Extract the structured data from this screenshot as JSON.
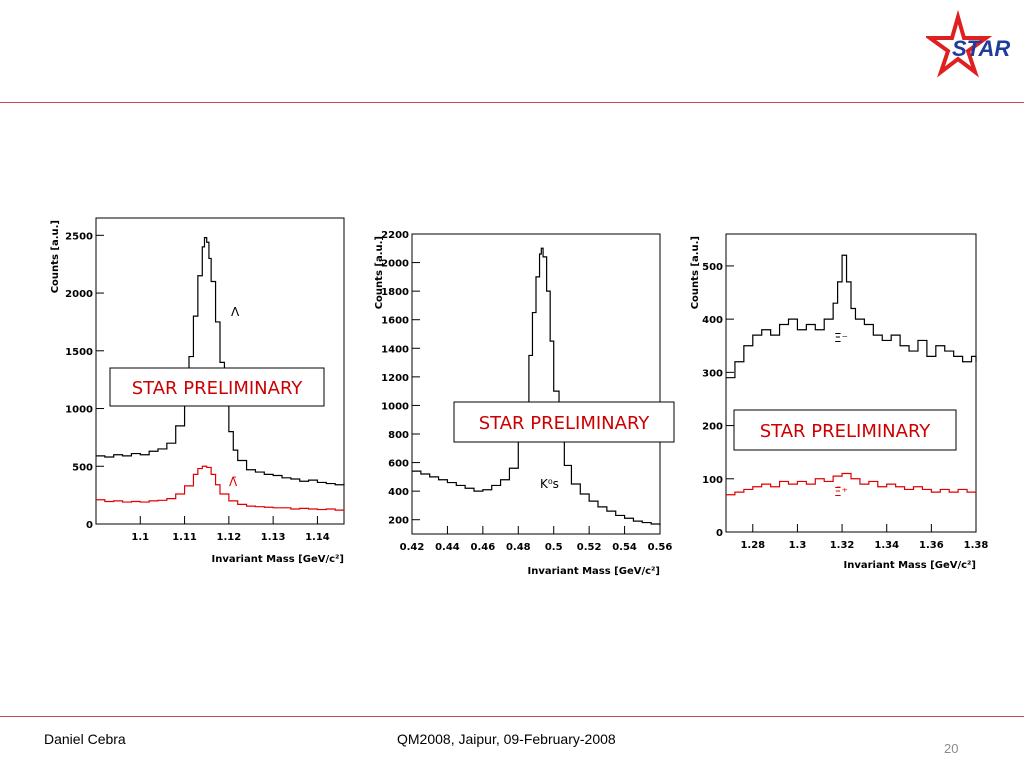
{
  "slide": {
    "footer_author": "Daniel Cebra",
    "footer_event": "QM2008, Jaipur, 09-February-2008",
    "page_number": "20",
    "logo_text": "STAR",
    "colors": {
      "rule": "#c0504d",
      "star": "#e02020",
      "logo_text": "#1f3c9c",
      "particle": "#000000",
      "antiparticle": "#e00000",
      "preliminary": "#cc0000"
    }
  },
  "chart_data": [
    {
      "type": "line",
      "title": "",
      "xlabel": "Invariant Mass [GeV/c²]",
      "ylabel": "Counts [a.u.]",
      "xlim": [
        1.09,
        1.146
      ],
      "ylim": [
        0,
        2650
      ],
      "xticks": [
        1.1,
        1.11,
        1.12,
        1.13,
        1.14
      ],
      "xtick_labels": [
        "1.1",
        "1.11",
        "1.12",
        "1.13",
        "1.14"
      ],
      "yticks": [
        0,
        500,
        1000,
        1500,
        2000,
        2500
      ],
      "ytick_labels": [
        "0",
        "500",
        "1000",
        "1500",
        "2000",
        "2500"
      ],
      "annotation": "STAR PRELIMINARY",
      "series": [
        {
          "name": "Λ",
          "color": "#000000",
          "x": [
            1.09,
            1.092,
            1.094,
            1.096,
            1.098,
            1.1,
            1.102,
            1.104,
            1.106,
            1.108,
            1.11,
            1.111,
            1.112,
            1.113,
            1.114,
            1.1145,
            1.115,
            1.1155,
            1.116,
            1.117,
            1.118,
            1.119,
            1.12,
            1.121,
            1.122,
            1.124,
            1.126,
            1.128,
            1.13,
            1.132,
            1.134,
            1.136,
            1.138,
            1.14,
            1.142,
            1.144,
            1.146
          ],
          "values": [
            590,
            580,
            600,
            590,
            610,
            600,
            630,
            650,
            700,
            850,
            1150,
            1450,
            1800,
            2150,
            2400,
            2480,
            2440,
            2300,
            2100,
            1750,
            1400,
            1050,
            800,
            640,
            550,
            470,
            450,
            430,
            420,
            400,
            390,
            370,
            380,
            360,
            350,
            340,
            350
          ]
        },
        {
          "name": "Λ̄",
          "color": "#e00000",
          "x": [
            1.09,
            1.092,
            1.094,
            1.096,
            1.098,
            1.1,
            1.102,
            1.104,
            1.106,
            1.108,
            1.11,
            1.112,
            1.113,
            1.114,
            1.115,
            1.116,
            1.117,
            1.118,
            1.12,
            1.122,
            1.124,
            1.126,
            1.128,
            1.13,
            1.132,
            1.134,
            1.136,
            1.138,
            1.14,
            1.142,
            1.144,
            1.146
          ],
          "values": [
            210,
            195,
            200,
            190,
            195,
            190,
            200,
            205,
            220,
            260,
            330,
            430,
            480,
            500,
            490,
            430,
            340,
            260,
            200,
            170,
            155,
            150,
            145,
            140,
            140,
            130,
            135,
            130,
            125,
            130,
            120,
            125
          ]
        }
      ]
    },
    {
      "type": "line",
      "title": "",
      "xlabel": "Invariant Mass [GeV/c²]",
      "ylabel": "Counts [a.u.]",
      "xlim": [
        0.42,
        0.56
      ],
      "ylim": [
        100,
        2200
      ],
      "xticks": [
        0.42,
        0.44,
        0.46,
        0.48,
        0.5,
        0.52,
        0.54,
        0.56
      ],
      "xtick_labels": [
        "0.42",
        "0.44",
        "0.46",
        "0.48",
        "0.5",
        "0.52",
        "0.54",
        "0.56"
      ],
      "yticks": [
        200,
        400,
        600,
        800,
        1000,
        1200,
        1400,
        1600,
        1800,
        2000,
        2200
      ],
      "ytick_labels": [
        "200",
        "400",
        "600",
        "800",
        "1000",
        "1200",
        "1400",
        "1600",
        "1800",
        "2000",
        "2200"
      ],
      "annotation": "STAR PRELIMINARY",
      "series": [
        {
          "name": "K⁰s",
          "color": "#000000",
          "x": [
            0.42,
            0.425,
            0.43,
            0.435,
            0.44,
            0.445,
            0.45,
            0.455,
            0.46,
            0.465,
            0.47,
            0.475,
            0.48,
            0.483,
            0.486,
            0.488,
            0.49,
            0.492,
            0.493,
            0.494,
            0.496,
            0.498,
            0.5,
            0.503,
            0.506,
            0.51,
            0.515,
            0.52,
            0.525,
            0.53,
            0.535,
            0.54,
            0.545,
            0.55,
            0.555,
            0.56
          ],
          "values": [
            540,
            520,
            500,
            480,
            460,
            440,
            420,
            400,
            410,
            440,
            480,
            560,
            750,
            1000,
            1350,
            1650,
            1900,
            2060,
            2100,
            2040,
            1800,
            1450,
            1100,
            800,
            580,
            450,
            380,
            330,
            290,
            260,
            230,
            210,
            190,
            180,
            170,
            160
          ]
        }
      ]
    },
    {
      "type": "line",
      "title": "",
      "xlabel": "Invariant Mass [GeV/c²]",
      "ylabel": "Counts [a.u.]",
      "xlim": [
        1.268,
        1.38
      ],
      "ylim": [
        0,
        560
      ],
      "xticks": [
        1.28,
        1.3,
        1.32,
        1.34,
        1.36,
        1.38
      ],
      "xtick_labels": [
        "1.28",
        "1.3",
        "1.32",
        "1.34",
        "1.36",
        "1.38"
      ],
      "yticks": [
        0,
        100,
        200,
        300,
        400,
        500
      ],
      "ytick_labels": [
        "0",
        "100",
        "200",
        "300",
        "400",
        "500"
      ],
      "annotation": "STAR PRELIMINARY",
      "series": [
        {
          "name": "Ξ⁻",
          "color": "#000000",
          "x": [
            1.268,
            1.272,
            1.276,
            1.28,
            1.284,
            1.288,
            1.292,
            1.296,
            1.3,
            1.304,
            1.308,
            1.312,
            1.316,
            1.318,
            1.32,
            1.322,
            1.324,
            1.326,
            1.33,
            1.334,
            1.338,
            1.342,
            1.346,
            1.35,
            1.354,
            1.358,
            1.362,
            1.366,
            1.37,
            1.374,
            1.378,
            1.38
          ],
          "values": [
            290,
            320,
            350,
            370,
            380,
            370,
            390,
            400,
            380,
            390,
            380,
            400,
            430,
            470,
            520,
            470,
            420,
            400,
            390,
            370,
            360,
            370,
            350,
            340,
            360,
            330,
            350,
            340,
            330,
            320,
            330,
            320
          ]
        },
        {
          "name": "Ξ̄⁺",
          "color": "#e00000",
          "x": [
            1.268,
            1.272,
            1.276,
            1.28,
            1.284,
            1.288,
            1.292,
            1.296,
            1.3,
            1.304,
            1.308,
            1.312,
            1.316,
            1.32,
            1.324,
            1.328,
            1.332,
            1.336,
            1.34,
            1.344,
            1.348,
            1.352,
            1.356,
            1.36,
            1.364,
            1.368,
            1.372,
            1.376,
            1.38
          ],
          "values": [
            70,
            75,
            80,
            85,
            90,
            85,
            95,
            90,
            95,
            90,
            100,
            95,
            105,
            110,
            100,
            90,
            95,
            85,
            90,
            85,
            80,
            85,
            80,
            75,
            80,
            75,
            80,
            75,
            75
          ]
        }
      ]
    }
  ]
}
